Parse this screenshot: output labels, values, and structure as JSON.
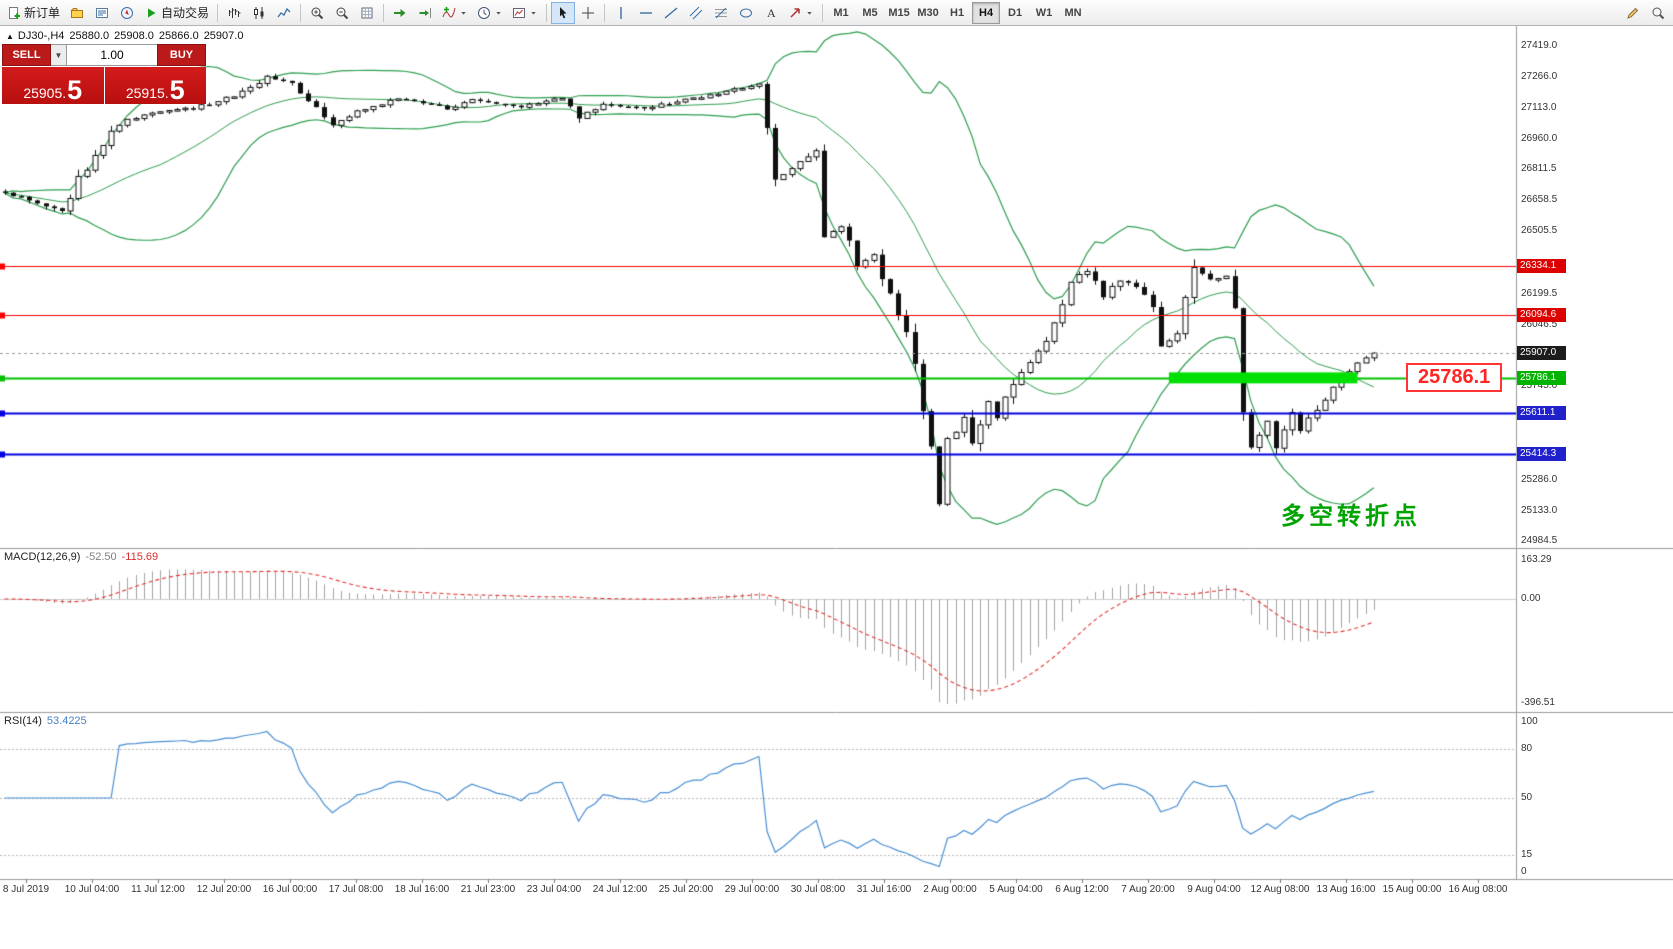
{
  "toolbar": {
    "new_order": "新订单",
    "autotrade": "自动交易",
    "timeframes": [
      "M1",
      "M5",
      "M15",
      "M30",
      "H1",
      "H4",
      "D1",
      "W1",
      "MN"
    ],
    "active_timeframe": "H4"
  },
  "chart": {
    "header": {
      "symbol_period": "DJ30-,H4",
      "open": "25880.0",
      "high": "25908.0",
      "low": "25866.0",
      "close": "25907.0"
    },
    "trade_widget": {
      "sell_label": "SELL",
      "buy_label": "BUY",
      "volume": "1.00",
      "sell_price": {
        "main": "25905.",
        "big": "5"
      },
      "buy_price": {
        "main": "25915.",
        "big": "5"
      }
    },
    "levels": [
      {
        "price": 26334.1,
        "color": "#ff0000",
        "width": 1
      },
      {
        "price": 26094.6,
        "color": "#ff0000",
        "width": 1
      },
      {
        "price": 25786.1,
        "color": "#00c000",
        "width": 2
      },
      {
        "price": 25611.1,
        "color": "#0000e0",
        "width": 2
      },
      {
        "price": 25414.3,
        "color": "#0000e0",
        "width": 2
      }
    ],
    "current_price": {
      "value": 25907.0,
      "label": "25907.0"
    },
    "highlight": {
      "price": 25786.1,
      "bar_start": 142,
      "bar_end": 165,
      "color": "#00e000",
      "thickness": 11
    },
    "callout": {
      "text": "25786.1"
    },
    "annotation": {
      "text": "多空转折点"
    },
    "price_scale": {
      "labels": [
        "27419.0",
        "27266.0",
        "27113.0",
        "26960.0",
        "26811.5",
        "26658.5",
        "26505.5",
        "26199.5",
        "26046.5",
        "25745.0",
        "25592.0",
        "25286.0",
        "25133.0",
        "24984.5"
      ],
      "tags": [
        {
          "text": "26334.1",
          "price": 26334.1,
          "color": "#dd0000"
        },
        {
          "text": "26094.6",
          "price": 26094.6,
          "color": "#dd0000"
        },
        {
          "text": "25907.0",
          "price": 25907.0,
          "color": "#1c1c1c"
        },
        {
          "text": "25786.1",
          "price": 25786.1,
          "color": "#00b400"
        },
        {
          "text": "25611.1",
          "price": 25611.1,
          "color": "#2121cc"
        },
        {
          "text": "25414.3",
          "price": 25414.3,
          "color": "#2121cc"
        }
      ]
    }
  },
  "macd": {
    "title": "MACD(12,26,9)",
    "value_main": "-52.50",
    "value_signal": "-115.69",
    "scale_labels": [
      "163.29",
      "0.00",
      "-396.51"
    ]
  },
  "rsi": {
    "title": "RSI(14)",
    "value": "53.4225",
    "scale_labels": [
      "100",
      "80",
      "50",
      "15",
      "0"
    ],
    "level_lines": [
      80,
      50,
      15
    ]
  },
  "time_axis": [
    "8 Jul 2019",
    "10 Jul 04:00",
    "11 Jul 12:00",
    "12 Jul 20:00",
    "16 Jul 00:00",
    "17 Jul 08:00",
    "18 Jul 16:00",
    "21 Jul 23:00",
    "23 Jul 04:00",
    "24 Jul 12:00",
    "25 Jul 20:00",
    "29 Jul 00:00",
    "30 Jul 08:00",
    "31 Jul 16:00",
    "2 Aug 00:00",
    "5 Aug 04:00",
    "6 Aug 12:00",
    "7 Aug 20:00",
    "9 Aug 04:00",
    "12 Aug 08:00",
    "13 Aug 16:00",
    "15 Aug 00:00",
    "16 Aug 08:00"
  ],
  "colors": {
    "band_green": "#2f9e4f",
    "candle": "#101010",
    "macd_hist": "#a4a4a4",
    "macd_signal": "#e23434",
    "rsi_line": "#4a8fd3",
    "current_dash": "#9b9b9b"
  },
  "chart_data": {
    "type": "candlestick",
    "symbol": "DJ30-",
    "timeframe": "H4",
    "current_ohlc": {
      "open": 25880.0,
      "high": 25908.0,
      "low": 25866.0,
      "close": 25907.0
    },
    "price_axis_range": [
      24960,
      27515
    ],
    "bars": 168,
    "close_anchors": [
      [
        0,
        26700
      ],
      [
        7,
        26600
      ],
      [
        9,
        26760
      ],
      [
        12,
        26930
      ],
      [
        14,
        27040
      ],
      [
        18,
        27090
      ],
      [
        23,
        27110
      ],
      [
        28,
        27170
      ],
      [
        32,
        27260
      ],
      [
        35,
        27230
      ],
      [
        38,
        27110
      ],
      [
        40,
        27030
      ],
      [
        43,
        27090
      ],
      [
        48,
        27160
      ],
      [
        54,
        27110
      ],
      [
        57,
        27150
      ],
      [
        63,
        27120
      ],
      [
        68,
        27160
      ],
      [
        70,
        27060
      ],
      [
        73,
        27130
      ],
      [
        78,
        27110
      ],
      [
        83,
        27150
      ],
      [
        88,
        27190
      ],
      [
        92,
        27230
      ],
      [
        94,
        26760
      ],
      [
        96,
        26810
      ],
      [
        99,
        26900
      ],
      [
        100,
        26480
      ],
      [
        102,
        26530
      ],
      [
        104,
        26350
      ],
      [
        106,
        26390
      ],
      [
        108,
        26180
      ],
      [
        110,
        26010
      ],
      [
        111,
        25860
      ],
      [
        113,
        25430
      ],
      [
        114,
        25170
      ],
      [
        115,
        25480
      ],
      [
        117,
        25580
      ],
      [
        118,
        25470
      ],
      [
        120,
        25690
      ],
      [
        121,
        25590
      ],
      [
        123,
        25770
      ],
      [
        125,
        25850
      ],
      [
        127,
        25960
      ],
      [
        129,
        26140
      ],
      [
        130,
        26270
      ],
      [
        132,
        26310
      ],
      [
        134,
        26190
      ],
      [
        136,
        26270
      ],
      [
        138,
        26240
      ],
      [
        140,
        26130
      ],
      [
        141,
        25940
      ],
      [
        143,
        26000
      ],
      [
        145,
        26330
      ],
      [
        147,
        26270
      ],
      [
        149,
        26290
      ],
      [
        150,
        26140
      ],
      [
        151,
        25640
      ],
      [
        152,
        25470
      ],
      [
        154,
        25560
      ],
      [
        155,
        25460
      ],
      [
        157,
        25610
      ],
      [
        158,
        25530
      ],
      [
        160,
        25640
      ],
      [
        162,
        25740
      ],
      [
        164,
        25830
      ],
      [
        166,
        25880
      ],
      [
        167,
        25907
      ]
    ],
    "indicators": {
      "bollinger": {
        "period": 20,
        "deviation": 2
      },
      "macd": {
        "fast": 12,
        "slow": 26,
        "signal": 9
      },
      "rsi": {
        "period": 14
      }
    }
  }
}
